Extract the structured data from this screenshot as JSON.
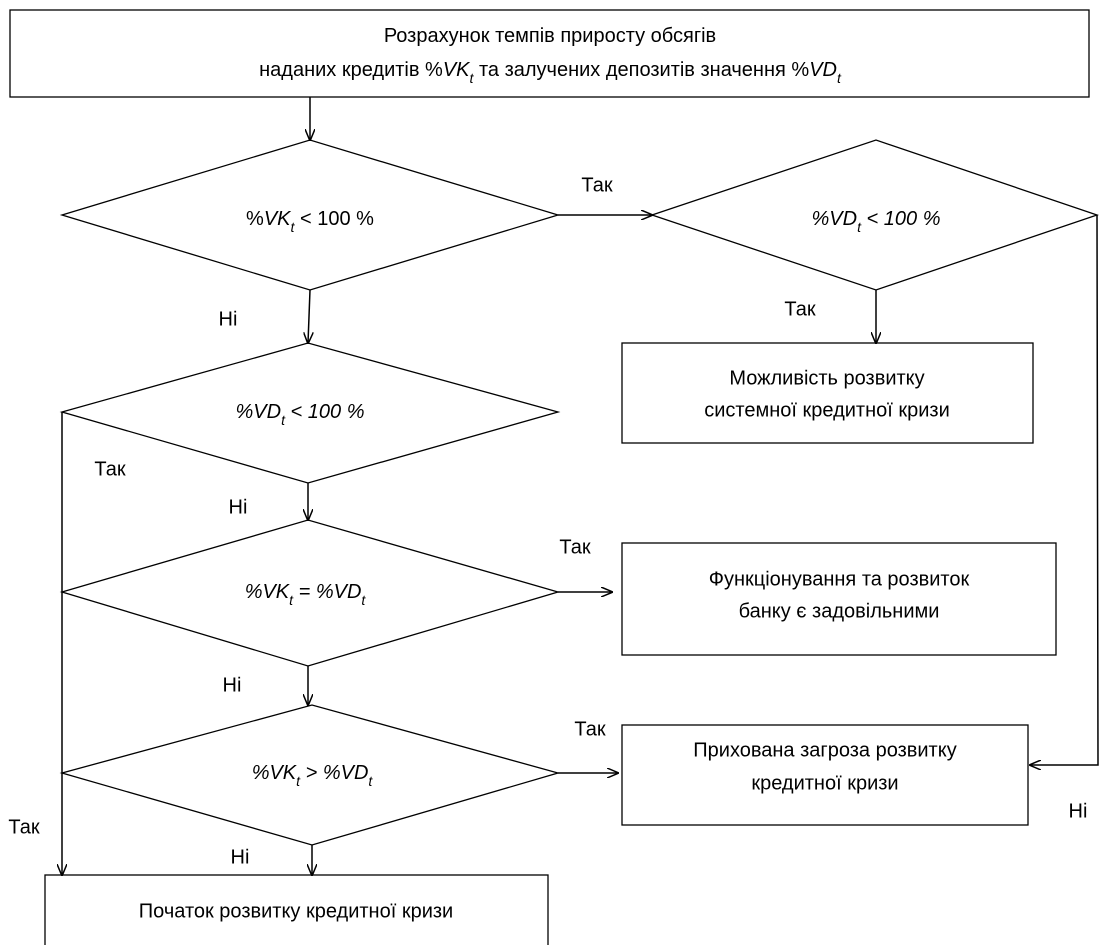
{
  "header": {
    "lines": [
      [
        "Розрахунок темпів приросту обсягів"
      ],
      [
        "наданих кредитів %",
        "VK",
        "t",
        " та залучених депозитів значення %",
        "VD",
        "t"
      ]
    ]
  },
  "decisions": [
    {
      "label": [
        "%",
        "VK",
        "t",
        " < 100 %"
      ]
    },
    {
      "label": [
        "%VD",
        "t",
        " < 100 %"
      ]
    },
    {
      "label": [
        "%VD",
        "t",
        " < 100 %"
      ]
    },
    {
      "label": [
        "%VK",
        "t",
        " = %VD",
        "t"
      ]
    },
    {
      "label": [
        "%VK",
        "t",
        " > %VD",
        "t"
      ]
    }
  ],
  "outcomes": [
    {
      "lines": [
        "Можливість розвитку",
        "системної кредитної кризи"
      ]
    },
    {
      "lines": [
        "Функціонування та розвиток",
        "банку є задовільними"
      ]
    },
    {
      "lines": [
        "Прихована загроза розвитку",
        "кредитної кризи"
      ]
    },
    {
      "lines": [
        "Початок розвитку кредитної кризи"
      ]
    }
  ],
  "edge_labels": [
    "Так",
    "Так",
    "Ні",
    "Так",
    "Ні",
    "Так",
    "Ні",
    "Так",
    "Ні",
    "Ні",
    "Так"
  ]
}
